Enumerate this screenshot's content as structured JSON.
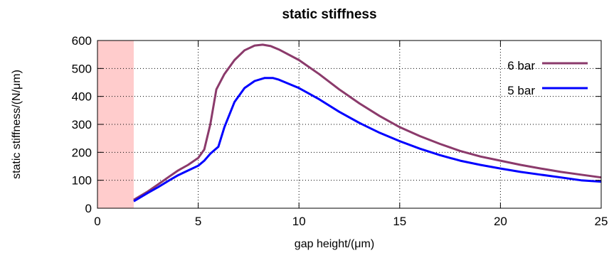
{
  "chart_data": {
    "type": "line",
    "title": "static stiffness",
    "xlabel": "gap height/(μm)",
    "ylabel": "static stiffness/(N/μm)",
    "xlim": [
      0,
      25
    ],
    "ylim": [
      0,
      600
    ],
    "xticks": [
      0,
      5,
      10,
      15,
      20,
      25
    ],
    "yticks": [
      0,
      100,
      200,
      300,
      400,
      500,
      600
    ],
    "grid": true,
    "legend_position": "top-right",
    "shaded_region": {
      "x": [
        0,
        1.8
      ],
      "color": "#ffcccc"
    },
    "series": [
      {
        "name": "6 bar",
        "color": "#8b3a6b",
        "x": [
          1.8,
          2.5,
          3,
          3.5,
          4,
          4.5,
          5,
          5.3,
          5.6,
          5.9,
          6.3,
          6.8,
          7.3,
          7.8,
          8.2,
          8.6,
          9,
          10,
          11,
          12,
          13,
          14,
          15,
          16,
          17,
          18,
          19,
          20,
          21,
          22,
          23,
          24,
          25
        ],
        "y": [
          30,
          60,
          85,
          110,
          135,
          155,
          180,
          210,
          300,
          425,
          480,
          530,
          565,
          582,
          585,
          580,
          568,
          530,
          480,
          425,
          375,
          330,
          290,
          258,
          230,
          205,
          185,
          170,
          155,
          142,
          130,
          120,
          110
        ]
      },
      {
        "name": "5 bar",
        "color": "#0000ff",
        "x": [
          1.8,
          2.5,
          3,
          3.5,
          4,
          4.5,
          5,
          5.3,
          5.6,
          6,
          6.3,
          6.8,
          7.3,
          7.8,
          8.3,
          8.7,
          9,
          10,
          11,
          12,
          13,
          14,
          15,
          16,
          17,
          18,
          19,
          20,
          21,
          22,
          23,
          24,
          25
        ],
        "y": [
          25,
          55,
          75,
          97,
          118,
          135,
          152,
          170,
          195,
          220,
          290,
          380,
          430,
          455,
          466,
          466,
          460,
          430,
          390,
          345,
          305,
          270,
          240,
          213,
          190,
          170,
          155,
          142,
          130,
          120,
          110,
          100,
          95
        ]
      }
    ]
  }
}
